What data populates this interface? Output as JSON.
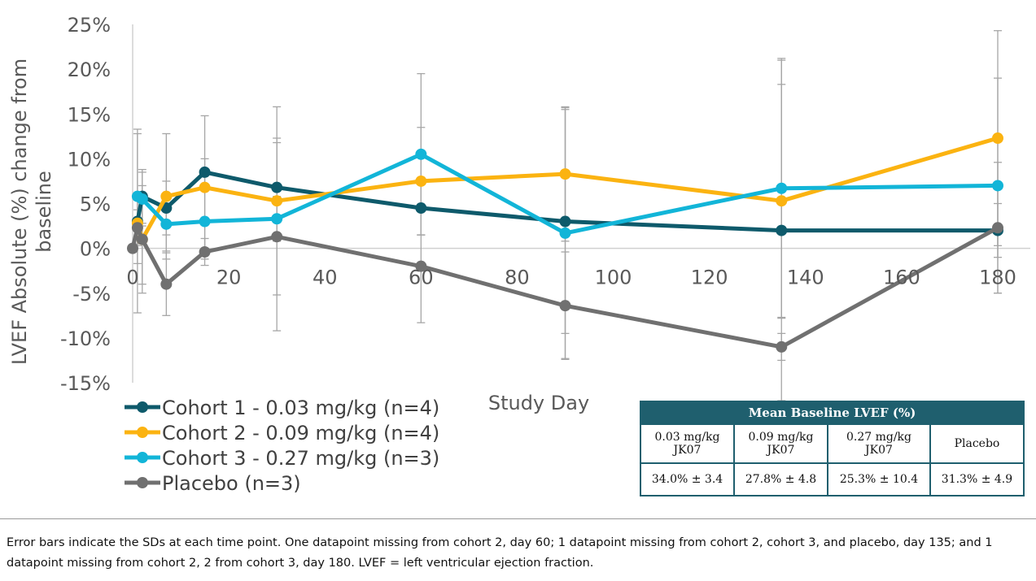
{
  "chart_data": {
    "type": "line",
    "xlabel": "Study Day",
    "ylabel": "LVEF Absolute (%) change from baseline",
    "xlim": [
      0,
      180
    ],
    "ylim": [
      -15,
      25
    ],
    "x_ticks": [
      "0",
      "20",
      "40",
      "60",
      "80",
      "100",
      "120",
      "140",
      "160",
      "180"
    ],
    "x_tick_values": [
      0,
      20,
      40,
      60,
      80,
      100,
      120,
      140,
      160,
      180
    ],
    "y_ticks": [
      "-15%",
      "-10%",
      "-5%",
      "0%",
      "5%",
      "10%",
      "15%",
      "20%",
      "25%"
    ],
    "y_tick_values": [
      -15,
      -10,
      -5,
      0,
      5,
      10,
      15,
      20,
      25
    ],
    "grid": "baseline at 0% only",
    "legend": "bottom-left",
    "series": [
      {
        "name": "Cohort 1 - 0.03 mg/kg (n=4)",
        "color": "#0e5a6b",
        "points": [
          [
            1,
            3.0
          ],
          [
            2,
            5.8
          ],
          [
            7,
            4.5
          ],
          [
            15,
            8.5
          ],
          [
            30,
            6.8
          ],
          [
            60,
            4.5
          ],
          [
            90,
            3.0
          ],
          [
            135,
            2.0
          ],
          [
            180,
            2.0
          ]
        ],
        "sd": [
          2.5,
          3.0,
          3.0,
          1.5,
          5.5,
          3.0,
          12.5,
          19.0,
          3.0
        ]
      },
      {
        "name": "Cohort 2 - 0.09 mg/kg (n=4)",
        "color": "#fbb311",
        "points": [
          [
            1,
            2.8
          ],
          [
            2,
            1.0
          ],
          [
            7,
            5.8
          ],
          [
            15,
            6.8
          ],
          [
            30,
            5.3
          ],
          [
            60,
            7.5
          ],
          [
            90,
            8.3
          ],
          [
            135,
            5.3
          ],
          [
            180,
            12.3
          ]
        ],
        "sd": [
          10.0,
          5.0,
          7.0,
          8.0,
          10.5,
          6.0,
          7.5,
          13.0,
          12.0
        ]
      },
      {
        "name": "Cohort 3 - 0.27 mg/kg (n=3)",
        "color": "#12b5d8",
        "points": [
          [
            1,
            5.8
          ],
          [
            2,
            5.5
          ],
          [
            7,
            2.7
          ],
          [
            15,
            3.0
          ],
          [
            30,
            3.3
          ],
          [
            60,
            10.5
          ],
          [
            90,
            1.7
          ],
          [
            135,
            6.7
          ],
          [
            180,
            7.0
          ]
        ],
        "sd": [
          7.5,
          3.0,
          3.0,
          3.5,
          2.5,
          9.0,
          14.0,
          14.5,
          12.0
        ]
      },
      {
        "name": "Placebo (n=3)",
        "color": "#707070",
        "points": [
          [
            0,
            0.0
          ],
          [
            1,
            2.3
          ],
          [
            2,
            1.0
          ],
          [
            7,
            -4.0
          ],
          [
            15,
            -0.4
          ],
          [
            30,
            1.3
          ],
          [
            60,
            -2.0
          ],
          [
            90,
            -6.4
          ],
          [
            135,
            -11.0
          ],
          [
            180,
            2.3
          ]
        ],
        "sd": [
          0,
          2.0,
          6.0,
          3.5,
          1.5,
          10.5,
          6.3,
          6.0,
          1.5,
          7.3
        ]
      }
    ]
  },
  "baseline_table": {
    "title": "Mean Baseline LVEF (%)",
    "columns": [
      {
        "line1": "0.03 mg/kg",
        "line2": "JK07",
        "value": "34.0% ± 3.4"
      },
      {
        "line1": "0.09 mg/kg",
        "line2": "JK07",
        "value": "27.8% ± 4.8"
      },
      {
        "line1": "0.27 mg/kg",
        "line2": "JK07",
        "value": "25.3% ± 10.4"
      },
      {
        "line1": "Placebo",
        "line2": "",
        "value": "31.3% ± 4.9"
      }
    ]
  },
  "footnote": "Error bars indicate the SDs at each time point. One datapoint missing from cohort 2, day 60; 1 datapoint missing from cohort 2, cohort 3, and placebo, day 135; and 1 datapoint missing from cohort 2, 2 from cohort 3, day 180. LVEF = left ventricular ejection fraction."
}
